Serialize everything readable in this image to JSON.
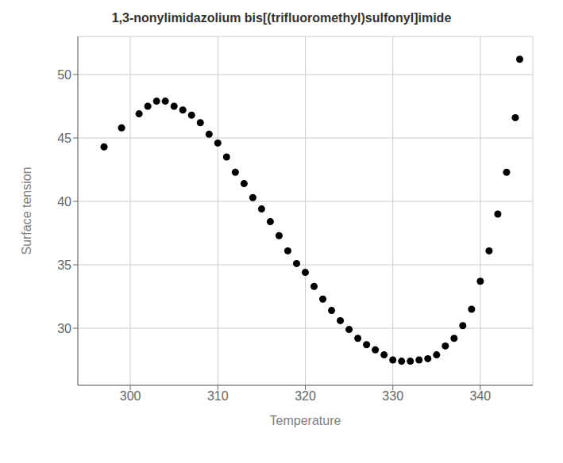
{
  "chart_data": {
    "type": "scatter",
    "title": "1,3-nonylimidazolium bis[(trifluoromethyl)sulfonyl]imide",
    "xlabel": "Temperature",
    "ylabel": "Surface tension",
    "xlim": [
      294,
      346
    ],
    "ylim": [
      25.5,
      53
    ],
    "xticks": [
      300,
      310,
      320,
      330,
      340
    ],
    "yticks": [
      30,
      35,
      40,
      45,
      50
    ],
    "x": [
      297,
      299,
      301,
      302,
      303,
      304,
      305,
      306,
      307,
      308,
      309,
      310,
      311,
      312,
      313,
      314,
      315,
      316,
      317,
      318,
      319,
      320,
      321,
      322,
      323,
      324,
      325,
      326,
      327,
      328,
      329,
      330,
      331,
      332,
      333,
      334,
      335,
      336,
      337,
      338,
      339,
      340,
      341,
      342,
      343,
      344,
      344.5
    ],
    "values": [
      44.3,
      45.8,
      46.9,
      47.5,
      47.9,
      47.9,
      47.5,
      47.2,
      46.8,
      46.2,
      45.3,
      44.6,
      43.5,
      42.3,
      41.4,
      40.3,
      39.4,
      38.4,
      37.3,
      36.1,
      35.1,
      34.4,
      33.3,
      32.3,
      31.4,
      30.6,
      29.9,
      29.2,
      28.7,
      28.3,
      27.9,
      27.5,
      27.4,
      27.4,
      27.5,
      27.6,
      27.9,
      28.6,
      29.2,
      30.2,
      31.5,
      33.7,
      36.1,
      39.0,
      42.3,
      46.6,
      51.2
    ],
    "color": "#000000",
    "grid": true
  }
}
